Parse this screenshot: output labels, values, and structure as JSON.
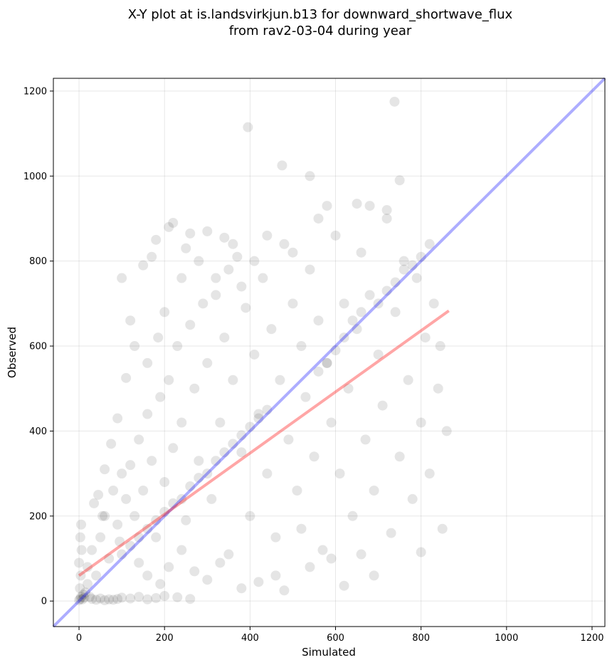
{
  "chart_data": {
    "type": "scatter",
    "title": "X-Y plot at is.landsvirkjun.b13 for downward_shortwave_flux",
    "subtitle": "from rav2-03-04 during year",
    "xlabel": "Simulated",
    "ylabel": "Observed",
    "xlim": [
      -60,
      1230
    ],
    "ylim": [
      -60,
      1230
    ],
    "xticks": [
      0,
      200,
      400,
      600,
      800,
      1000,
      1200
    ],
    "yticks": [
      0,
      200,
      400,
      600,
      800,
      1000,
      1200
    ],
    "grid": true,
    "colors": {
      "points": "#000000",
      "identity_line": "#0000ff",
      "fit_line": "#ff0000",
      "grid": "#b0b0b0"
    },
    "identity_line": {
      "x": [
        -60,
        1230
      ],
      "y": [
        -60,
        1230
      ]
    },
    "fit_line": {
      "x": [
        0,
        865
      ],
      "y": [
        60,
        683
      ]
    },
    "points": [
      {
        "x": 0,
        "y": 2
      },
      {
        "x": 3,
        "y": 5
      },
      {
        "x": 5,
        "y": 10
      },
      {
        "x": 8,
        "y": 4
      },
      {
        "x": 10,
        "y": 15
      },
      {
        "x": 12,
        "y": 8
      },
      {
        "x": 2,
        "y": 30
      },
      {
        "x": 4,
        "y": 60
      },
      {
        "x": 0,
        "y": 90
      },
      {
        "x": 6,
        "y": 120
      },
      {
        "x": 3,
        "y": 150
      },
      {
        "x": 5,
        "y": 180
      },
      {
        "x": 15,
        "y": 20
      },
      {
        "x": 20,
        "y": 40
      },
      {
        "x": 25,
        "y": 10
      },
      {
        "x": 30,
        "y": 5
      },
      {
        "x": 40,
        "y": 3
      },
      {
        "x": 50,
        "y": 6
      },
      {
        "x": 60,
        "y": 2
      },
      {
        "x": 70,
        "y": 4
      },
      {
        "x": 80,
        "y": 3
      },
      {
        "x": 90,
        "y": 5
      },
      {
        "x": 100,
        "y": 8
      },
      {
        "x": 120,
        "y": 6
      },
      {
        "x": 140,
        "y": 10
      },
      {
        "x": 160,
        "y": 4
      },
      {
        "x": 180,
        "y": 7
      },
      {
        "x": 200,
        "y": 12
      },
      {
        "x": 230,
        "y": 9
      },
      {
        "x": 260,
        "y": 5
      },
      {
        "x": 20,
        "y": 80
      },
      {
        "x": 30,
        "y": 120
      },
      {
        "x": 40,
        "y": 60
      },
      {
        "x": 50,
        "y": 150
      },
      {
        "x": 60,
        "y": 200
      },
      {
        "x": 35,
        "y": 230
      },
      {
        "x": 70,
        "y": 100
      },
      {
        "x": 80,
        "y": 260
      },
      {
        "x": 90,
        "y": 180
      },
      {
        "x": 100,
        "y": 300
      },
      {
        "x": 110,
        "y": 240
      },
      {
        "x": 95,
        "y": 140
      },
      {
        "x": 120,
        "y": 320
      },
      {
        "x": 130,
        "y": 200
      },
      {
        "x": 140,
        "y": 380
      },
      {
        "x": 150,
        "y": 260
      },
      {
        "x": 160,
        "y": 440
      },
      {
        "x": 170,
        "y": 330
      },
      {
        "x": 180,
        "y": 150
      },
      {
        "x": 190,
        "y": 480
      },
      {
        "x": 200,
        "y": 280
      },
      {
        "x": 210,
        "y": 520
      },
      {
        "x": 220,
        "y": 360
      },
      {
        "x": 230,
        "y": 600
      },
      {
        "x": 240,
        "y": 420
      },
      {
        "x": 250,
        "y": 190
      },
      {
        "x": 260,
        "y": 650
      },
      {
        "x": 270,
        "y": 500
      },
      {
        "x": 280,
        "y": 330
      },
      {
        "x": 290,
        "y": 700
      },
      {
        "x": 300,
        "y": 560
      },
      {
        "x": 310,
        "y": 240
      },
      {
        "x": 320,
        "y": 760
      },
      {
        "x": 330,
        "y": 420
      },
      {
        "x": 340,
        "y": 620
      },
      {
        "x": 350,
        "y": 110
      },
      {
        "x": 360,
        "y": 520
      },
      {
        "x": 370,
        "y": 810
      },
      {
        "x": 380,
        "y": 350
      },
      {
        "x": 390,
        "y": 690
      },
      {
        "x": 400,
        "y": 200
      },
      {
        "x": 410,
        "y": 580
      },
      {
        "x": 420,
        "y": 440
      },
      {
        "x": 430,
        "y": 760
      },
      {
        "x": 440,
        "y": 300
      },
      {
        "x": 450,
        "y": 640
      },
      {
        "x": 460,
        "y": 150
      },
      {
        "x": 470,
        "y": 520
      },
      {
        "x": 480,
        "y": 840
      },
      {
        "x": 490,
        "y": 380
      },
      {
        "x": 500,
        "y": 700
      },
      {
        "x": 510,
        "y": 260
      },
      {
        "x": 520,
        "y": 600
      },
      {
        "x": 530,
        "y": 480
      },
      {
        "x": 540,
        "y": 780
      },
      {
        "x": 550,
        "y": 340
      },
      {
        "x": 560,
        "y": 660
      },
      {
        "x": 570,
        "y": 120
      },
      {
        "x": 580,
        "y": 560
      },
      {
        "x": 590,
        "y": 420
      },
      {
        "x": 600,
        "y": 860
      },
      {
        "x": 610,
        "y": 300
      },
      {
        "x": 620,
        "y": 700
      },
      {
        "x": 630,
        "y": 500
      },
      {
        "x": 640,
        "y": 200
      },
      {
        "x": 650,
        "y": 640
      },
      {
        "x": 660,
        "y": 820
      },
      {
        "x": 670,
        "y": 380
      },
      {
        "x": 680,
        "y": 720
      },
      {
        "x": 690,
        "y": 260
      },
      {
        "x": 700,
        "y": 580
      },
      {
        "x": 710,
        "y": 460
      },
      {
        "x": 720,
        "y": 900
      },
      {
        "x": 730,
        "y": 160
      },
      {
        "x": 740,
        "y": 680
      },
      {
        "x": 750,
        "y": 340
      },
      {
        "x": 760,
        "y": 800
      },
      {
        "x": 770,
        "y": 520
      },
      {
        "x": 780,
        "y": 240
      },
      {
        "x": 790,
        "y": 760
      },
      {
        "x": 800,
        "y": 420
      },
      {
        "x": 810,
        "y": 620
      },
      {
        "x": 820,
        "y": 300
      },
      {
        "x": 830,
        "y": 700
      },
      {
        "x": 840,
        "y": 500
      },
      {
        "x": 850,
        "y": 170
      },
      {
        "x": 860,
        "y": 400
      },
      {
        "x": 845,
        "y": 600
      },
      {
        "x": 820,
        "y": 840
      },
      {
        "x": 800,
        "y": 115
      },
      {
        "x": 100,
        "y": 760
      },
      {
        "x": 120,
        "y": 660
      },
      {
        "x": 150,
        "y": 790
      },
      {
        "x": 170,
        "y": 810
      },
      {
        "x": 180,
        "y": 850
      },
      {
        "x": 210,
        "y": 880
      },
      {
        "x": 220,
        "y": 890
      },
      {
        "x": 250,
        "y": 830
      },
      {
        "x": 260,
        "y": 865
      },
      {
        "x": 300,
        "y": 870
      },
      {
        "x": 340,
        "y": 855
      },
      {
        "x": 360,
        "y": 840
      },
      {
        "x": 395,
        "y": 1115
      },
      {
        "x": 475,
        "y": 1025
      },
      {
        "x": 540,
        "y": 1000
      },
      {
        "x": 738,
        "y": 1175
      },
      {
        "x": 750,
        "y": 990
      },
      {
        "x": 580,
        "y": 930
      },
      {
        "x": 650,
        "y": 935
      },
      {
        "x": 680,
        "y": 930
      },
      {
        "x": 720,
        "y": 920
      },
      {
        "x": 560,
        "y": 900
      },
      {
        "x": 110,
        "y": 525
      },
      {
        "x": 90,
        "y": 430
      },
      {
        "x": 75,
        "y": 370
      },
      {
        "x": 60,
        "y": 310
      },
      {
        "x": 45,
        "y": 250
      },
      {
        "x": 55,
        "y": 200
      },
      {
        "x": 130,
        "y": 600
      },
      {
        "x": 160,
        "y": 560
      },
      {
        "x": 185,
        "y": 620
      },
      {
        "x": 200,
        "y": 680
      },
      {
        "x": 240,
        "y": 760
      },
      {
        "x": 280,
        "y": 800
      },
      {
        "x": 320,
        "y": 720
      },
      {
        "x": 350,
        "y": 780
      },
      {
        "x": 380,
        "y": 740
      },
      {
        "x": 410,
        "y": 800
      },
      {
        "x": 440,
        "y": 860
      },
      {
        "x": 500,
        "y": 820
      },
      {
        "x": 520,
        "y": 170
      },
      {
        "x": 540,
        "y": 80
      },
      {
        "x": 590,
        "y": 100
      },
      {
        "x": 620,
        "y": 36
      },
      {
        "x": 660,
        "y": 110
      },
      {
        "x": 690,
        "y": 60
      },
      {
        "x": 480,
        "y": 25
      },
      {
        "x": 460,
        "y": 60
      },
      {
        "x": 420,
        "y": 45
      },
      {
        "x": 380,
        "y": 30
      },
      {
        "x": 330,
        "y": 90
      },
      {
        "x": 300,
        "y": 50
      },
      {
        "x": 270,
        "y": 70
      },
      {
        "x": 240,
        "y": 120
      },
      {
        "x": 210,
        "y": 80
      },
      {
        "x": 190,
        "y": 40
      },
      {
        "x": 160,
        "y": 60
      },
      {
        "x": 140,
        "y": 90
      },
      {
        "x": 620,
        "y": 620
      },
      {
        "x": 640,
        "y": 660
      },
      {
        "x": 660,
        "y": 680
      },
      {
        "x": 600,
        "y": 590
      },
      {
        "x": 580,
        "y": 560
      },
      {
        "x": 560,
        "y": 540
      },
      {
        "x": 700,
        "y": 700
      },
      {
        "x": 720,
        "y": 730
      },
      {
        "x": 740,
        "y": 750
      },
      {
        "x": 760,
        "y": 780
      },
      {
        "x": 780,
        "y": 790
      },
      {
        "x": 800,
        "y": 810
      },
      {
        "x": 440,
        "y": 450
      },
      {
        "x": 420,
        "y": 430
      },
      {
        "x": 400,
        "y": 410
      },
      {
        "x": 380,
        "y": 390
      },
      {
        "x": 360,
        "y": 370
      },
      {
        "x": 340,
        "y": 350
      },
      {
        "x": 320,
        "y": 330
      },
      {
        "x": 300,
        "y": 300
      },
      {
        "x": 280,
        "y": 290
      },
      {
        "x": 260,
        "y": 270
      },
      {
        "x": 240,
        "y": 240
      },
      {
        "x": 220,
        "y": 230
      },
      {
        "x": 200,
        "y": 210
      },
      {
        "x": 180,
        "y": 190
      },
      {
        "x": 160,
        "y": 170
      },
      {
        "x": 140,
        "y": 150
      },
      {
        "x": 120,
        "y": 130
      },
      {
        "x": 100,
        "y": 110
      }
    ]
  }
}
